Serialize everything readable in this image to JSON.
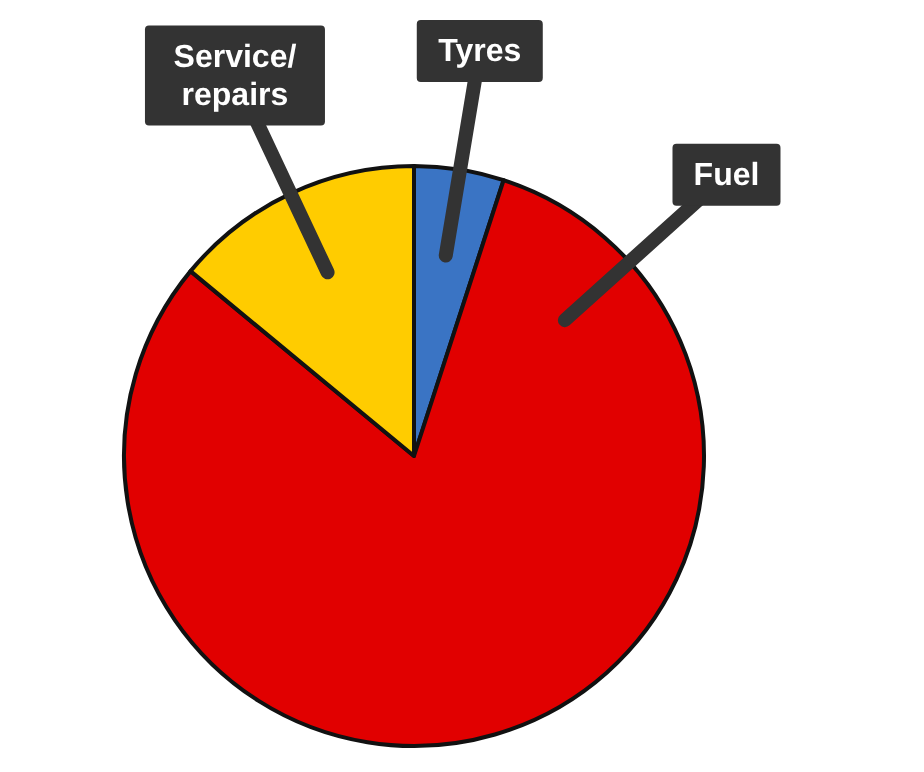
{
  "chart_data": {
    "type": "pie",
    "categories": [
      "Tyres",
      "Fuel",
      "Service/ repairs"
    ],
    "values": [
      5,
      81,
      14
    ],
    "colors": [
      "#3a74c4",
      "#e10000",
      "#ffcc00"
    ]
  }
}
